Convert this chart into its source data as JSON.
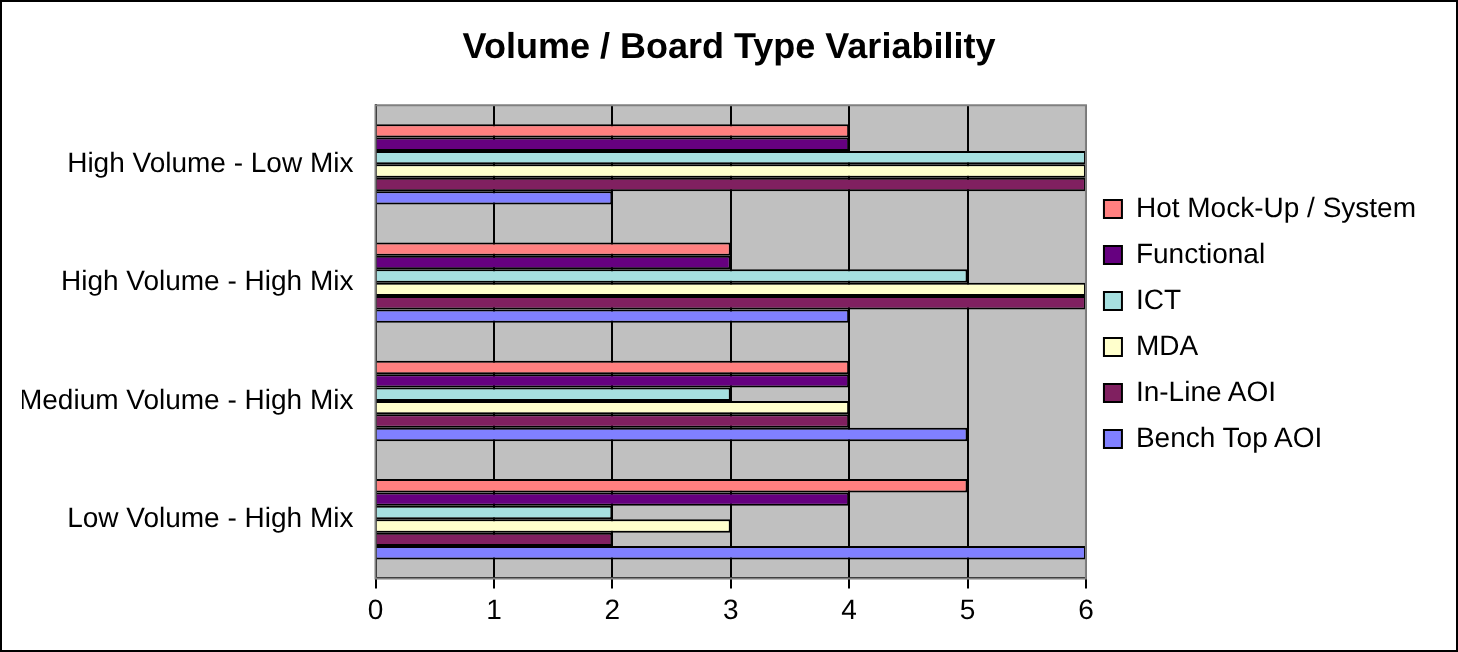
{
  "chart_data": {
    "type": "bar",
    "orientation": "horizontal",
    "title": "Volume / Board Type Variability",
    "categories": [
      "High Volume - Low Mix",
      "High Volume - High Mix",
      "Medium Volume - High Mix",
      "Low Volume - High Mix"
    ],
    "series": [
      {
        "name": "Hot Mock-Up / System",
        "color": "#ff8080",
        "values": [
          4,
          3,
          4,
          5
        ]
      },
      {
        "name": "Functional",
        "color": "#660080",
        "values": [
          4,
          3,
          4,
          4
        ]
      },
      {
        "name": "ICT",
        "color": "#a6e0e0",
        "values": [
          6,
          5,
          3,
          2
        ]
      },
      {
        "name": "MDA",
        "color": "#ffffcc",
        "values": [
          6,
          6,
          4,
          3
        ]
      },
      {
        "name": "In-Line AOI",
        "color": "#802060",
        "values": [
          6,
          6,
          4,
          2
        ]
      },
      {
        "name": "Bench Top AOI",
        "color": "#8080ff",
        "values": [
          2,
          4,
          5,
          6
        ]
      }
    ],
    "xlim": [
      0,
      6
    ],
    "xticks": [
      0,
      1,
      2,
      3,
      4,
      5,
      6
    ],
    "grid": "x",
    "legend": "right"
  }
}
